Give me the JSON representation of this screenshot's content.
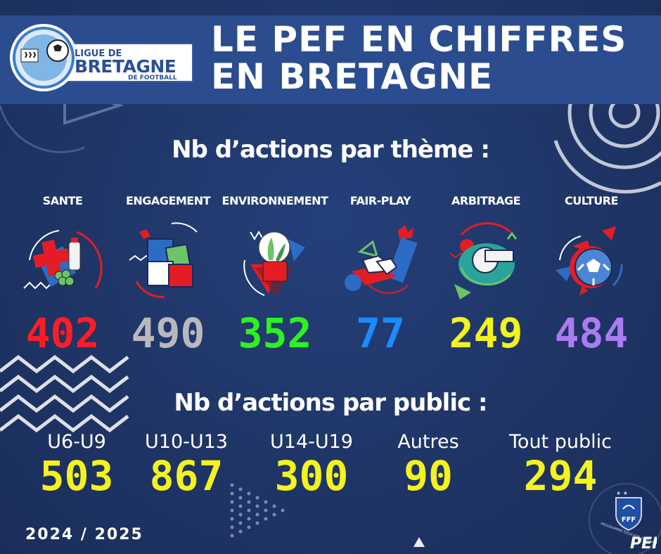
{
  "header": {
    "logo": {
      "line1": "LIGUE DE",
      "line2": "BRETAGNE",
      "line3": "DE FOOTBALL"
    },
    "title_line1": "LE PEF EN CHIFFRES",
    "title_line2": "EN BRETAGNE"
  },
  "themes_section": {
    "title": "Nb d’actions par thème :",
    "items": [
      {
        "label": "SANTE",
        "value": "402",
        "color": "#ff1d25",
        "icon": "health-icon"
      },
      {
        "label": "ENGAGEMENT",
        "value": "490",
        "color": "#b9b9bd",
        "icon": "puzzle-icon"
      },
      {
        "label": "ENVIRONNEMENT",
        "value": "352",
        "color": "#2cf31f",
        "icon": "plant-icon"
      },
      {
        "label": "FAIR-PLAY",
        "value": "77",
        "color": "#1a8cff",
        "icon": "handshake-icon"
      },
      {
        "label": "ARBITRAGE",
        "value": "249",
        "color": "#f4f31c",
        "icon": "whistle-icon"
      },
      {
        "label": "CULTURE",
        "value": "484",
        "color": "#a97cf0",
        "icon": "football-icon"
      }
    ]
  },
  "public_section": {
    "title": "Nb d’actions par public :",
    "items": [
      {
        "label": "U6-U9",
        "value": "503"
      },
      {
        "label": "U10-U13",
        "value": "867"
      },
      {
        "label": "U14-U19",
        "value": "300"
      },
      {
        "label": "Autres",
        "value": "90"
      },
      {
        "label": "Tout public",
        "value": "294"
      }
    ]
  },
  "footer": {
    "season": "2024 / 2025",
    "fff_logo": {
      "badge": "FFF",
      "side_text": "PROGRAMME ÉDUCATIF FÉDÉRAL",
      "mark": "PEF"
    }
  },
  "colors": {
    "background": "#1f3566",
    "banner": "#2b4d8f",
    "public_value": "#f4f31c"
  }
}
